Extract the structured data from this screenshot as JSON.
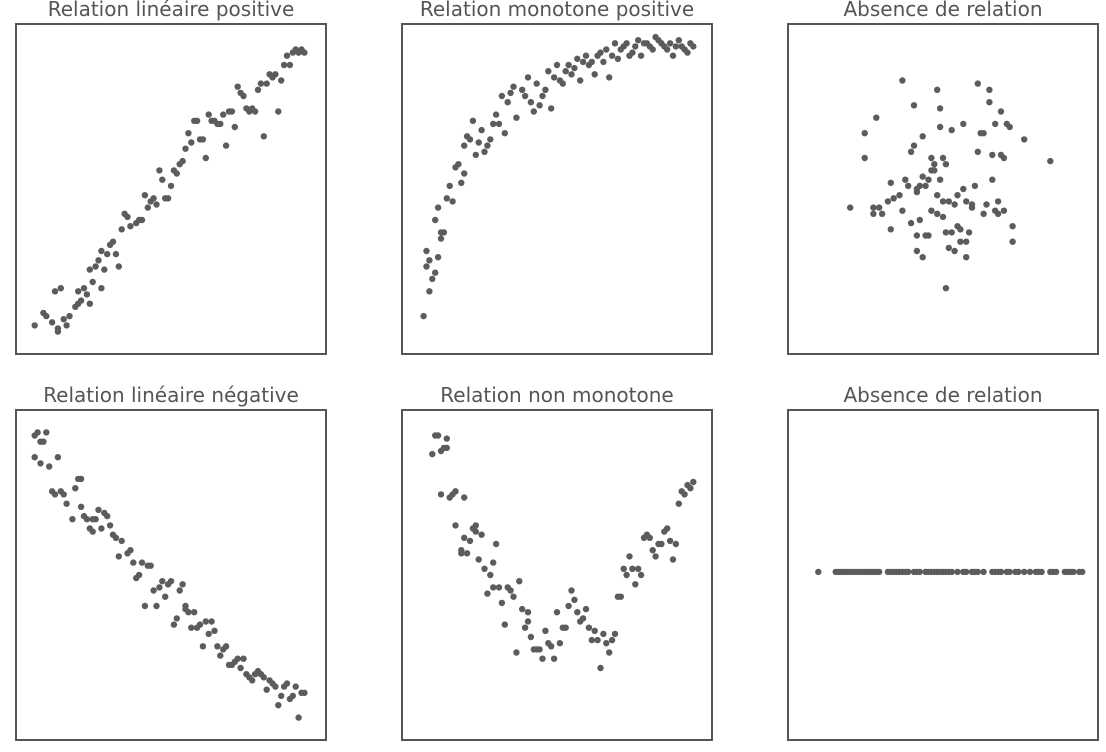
{
  "chart_data": [
    {
      "type": "scatter",
      "title": "Relation linéaire positive",
      "xlim": [
        0,
        100
      ],
      "ylim": [
        0,
        100
      ],
      "x": [
        3,
        6,
        7,
        9,
        10,
        11,
        11,
        12,
        13,
        14,
        15,
        17,
        18,
        18,
        19,
        20,
        21,
        22,
        22,
        23,
        24,
        25,
        26,
        26,
        27,
        28,
        29,
        30,
        31,
        32,
        33,
        34,
        35,
        36,
        38,
        39,
        40,
        41,
        42,
        43,
        44,
        45,
        46,
        47,
        48,
        49,
        50,
        51,
        52,
        53,
        54,
        55,
        56,
        57,
        58,
        59,
        60,
        61,
        62,
        63,
        64,
        65,
        66,
        67,
        68,
        69,
        70,
        71,
        72,
        73,
        74,
        75,
        76,
        77,
        78,
        79,
        80,
        81,
        82,
        83,
        84,
        85,
        86,
        87,
        88,
        89,
        90,
        91,
        92,
        93,
        94,
        95,
        96
      ],
      "y": [
        6,
        10,
        9,
        7,
        17,
        5,
        4,
        18,
        8,
        6,
        9,
        12,
        17,
        13,
        14,
        18,
        16,
        13,
        24,
        20,
        25,
        27,
        18,
        30,
        24,
        29,
        32,
        33,
        29,
        25,
        37,
        42,
        41,
        38,
        39,
        40,
        40,
        48,
        44,
        46,
        47,
        45,
        56,
        53,
        47,
        47,
        51,
        56,
        55,
        58,
        59,
        63,
        68,
        65,
        72,
        72,
        66,
        66,
        60,
        74,
        72,
        72,
        71,
        71,
        74,
        64,
        75,
        75,
        70,
        83,
        81,
        80,
        76,
        75,
        76,
        75,
        82,
        84,
        67,
        84,
        87,
        86,
        87,
        75,
        85,
        90,
        93,
        90,
        94,
        95,
        94,
        95,
        94
      ]
    },
    {
      "type": "scatter",
      "title": "Relation monotone positive",
      "xlim": [
        0,
        100
      ],
      "ylim": [
        0,
        100
      ],
      "x": [
        4,
        5,
        5,
        6,
        6,
        7,
        8,
        8,
        9,
        9,
        10,
        10,
        11,
        12,
        13,
        14,
        15,
        16,
        17,
        18,
        18,
        19,
        20,
        21,
        22,
        23,
        24,
        25,
        26,
        27,
        28,
        29,
        30,
        31,
        32,
        33,
        34,
        35,
        36,
        38,
        39,
        40,
        41,
        42,
        43,
        44,
        45,
        46,
        47,
        48,
        49,
        50,
        51,
        52,
        53,
        54,
        55,
        56,
        57,
        58,
        59,
        60,
        61,
        62,
        63,
        64,
        65,
        66,
        67,
        68,
        69,
        70,
        71,
        72,
        73,
        74,
        75,
        76,
        77,
        78,
        79,
        80,
        81,
        82,
        83,
        84,
        85,
        86,
        87,
        88,
        89,
        90,
        91,
        92,
        93,
        94,
        95,
        96,
        97
      ],
      "y": [
        9,
        25,
        30,
        17,
        27,
        21,
        23,
        40,
        44,
        28,
        34,
        36,
        36,
        47,
        51,
        46,
        57,
        58,
        52,
        55,
        64,
        67,
        66,
        72,
        61,
        65,
        69,
        62,
        64,
        66,
        71,
        74,
        71,
        80,
        68,
        78,
        81,
        83,
        73,
        82,
        80,
        86,
        78,
        75,
        84,
        77,
        80,
        82,
        88,
        76,
        86,
        90,
        85,
        84,
        88,
        90,
        87,
        89,
        92,
        85,
        91,
        93,
        90,
        91,
        87,
        93,
        94,
        91,
        95,
        86,
        93,
        97,
        92,
        95,
        96,
        97,
        93,
        94,
        96,
        98,
        93,
        97,
        97,
        96,
        95,
        99,
        98,
        97,
        96,
        95,
        97,
        93,
        96,
        98,
        96,
        95,
        94,
        97,
        96
      ]
    },
    {
      "type": "scatter",
      "title": "Absence de relation",
      "xlim": [
        0,
        100
      ],
      "ylim": [
        0,
        100
      ],
      "x": [
        18,
        23,
        23,
        26,
        26,
        27,
        28,
        29,
        31,
        32,
        32,
        33,
        35,
        36,
        36,
        37,
        38,
        39,
        39,
        40,
        40,
        41,
        41,
        41,
        41,
        42,
        42,
        43,
        43,
        43,
        44,
        44,
        45,
        45,
        46,
        46,
        46,
        47,
        47,
        48,
        48,
        48,
        49,
        49,
        49,
        50,
        50,
        50,
        51,
        51,
        51,
        52,
        52,
        53,
        53,
        54,
        54,
        55,
        55,
        56,
        56,
        57,
        57,
        58,
        58,
        58,
        59,
        60,
        60,
        61,
        62,
        62,
        63,
        64,
        64,
        65,
        66,
        66,
        67,
        67,
        68,
        68,
        69,
        69,
        70,
        70,
        71,
        71,
        72,
        73,
        74,
        74,
        78,
        87
      ],
      "y": [
        44,
        68,
        60,
        44,
        42,
        73,
        44,
        42,
        46,
        52,
        37,
        47,
        48,
        43,
        85,
        53,
        51,
        39,
        62,
        64,
        77,
        30,
        50,
        49,
        35,
        40,
        51,
        54,
        67,
        28,
        35,
        51,
        35,
        53,
        43,
        56,
        60,
        58,
        56,
        48,
        82,
        42,
        70,
        76,
        53,
        41,
        46,
        60,
        18,
        36,
        58,
        46,
        31,
        36,
        69,
        30,
        45,
        48,
        38,
        37,
        33,
        50,
        71,
        46,
        33,
        28,
        36,
        44,
        45,
        51,
        84,
        62,
        68,
        68,
        42,
        45,
        82,
        78,
        53,
        61,
        43,
        71,
        42,
        46,
        61,
        75,
        43,
        60,
        71,
        70,
        33,
        38,
        66,
        59
      ]
    },
    {
      "type": "scatter",
      "title": "Relation linéaire négative",
      "xlim": [
        0,
        100
      ],
      "ylim": [
        0,
        100
      ],
      "x": [
        3,
        3,
        4,
        5,
        5,
        6,
        7,
        8,
        9,
        10,
        11,
        12,
        13,
        14,
        16,
        17,
        18,
        19,
        19,
        20,
        21,
        22,
        23,
        23,
        24,
        25,
        26,
        27,
        28,
        29,
        30,
        31,
        32,
        33,
        35,
        36,
        37,
        38,
        39,
        40,
        41,
        42,
        43,
        44,
        45,
        46,
        47,
        48,
        49,
        50,
        51,
        52,
        53,
        54,
        55,
        55,
        56,
        57,
        58,
        59,
        60,
        61,
        62,
        63,
        64,
        65,
        66,
        67,
        68,
        69,
        70,
        71,
        72,
        73,
        74,
        75,
        76,
        77,
        78,
        79,
        80,
        81,
        82,
        83,
        84,
        85,
        86,
        87,
        88,
        89,
        90,
        91,
        92,
        93,
        94,
        95,
        96
      ],
      "y": [
        95,
        88,
        96,
        93,
        86,
        93,
        96,
        85,
        77,
        76,
        88,
        77,
        76,
        73,
        68,
        78,
        81,
        81,
        72,
        69,
        68,
        65,
        64,
        68,
        68,
        71,
        65,
        70,
        69,
        66,
        63,
        62,
        56,
        61,
        57,
        58,
        54,
        49,
        50,
        54,
        40,
        53,
        53,
        45,
        40,
        46,
        48,
        43,
        47,
        48,
        34,
        36,
        45,
        47,
        40,
        39,
        38,
        33,
        38,
        33,
        34,
        27,
        35,
        31,
        35,
        32,
        27,
        24,
        26,
        27,
        21,
        21,
        22,
        23,
        20,
        23,
        18,
        17,
        16,
        18,
        19,
        18,
        17,
        13,
        16,
        15,
        14,
        8,
        11,
        14,
        15,
        10,
        11,
        14,
        4,
        12,
        12
      ]
    },
    {
      "type": "scatter",
      "title": "Relation non monotone",
      "xlim": [
        0,
        100
      ],
      "ylim": [
        0,
        100
      ],
      "x": [
        7,
        8,
        9,
        10,
        10,
        11,
        12,
        12,
        13,
        14,
        15,
        15,
        17,
        17,
        18,
        18,
        19,
        20,
        21,
        22,
        22,
        23,
        24,
        25,
        26,
        27,
        28,
        28,
        29,
        30,
        31,
        32,
        33,
        34,
        35,
        36,
        37,
        38,
        39,
        40,
        40,
        41,
        42,
        43,
        44,
        45,
        46,
        47,
        48,
        49,
        50,
        51,
        52,
        53,
        54,
        55,
        56,
        57,
        58,
        59,
        60,
        61,
        62,
        63,
        64,
        65,
        66,
        67,
        68,
        69,
        70,
        71,
        72,
        73,
        74,
        75,
        76,
        77,
        78,
        79,
        80,
        81,
        82,
        83,
        84,
        85,
        86,
        87,
        88,
        89,
        90,
        91,
        92,
        93,
        94,
        95,
        96,
        97
      ],
      "y": [
        89,
        95,
        95,
        76,
        90,
        91,
        94,
        91,
        75,
        76,
        77,
        66,
        58,
        57,
        62,
        75,
        57,
        61,
        65,
        64,
        66,
        55,
        63,
        52,
        44,
        50,
        54,
        46,
        60,
        46,
        41,
        34,
        46,
        45,
        43,
        25,
        48,
        39,
        33,
        35,
        38,
        30,
        26,
        26,
        26,
        23,
        32,
        28,
        27,
        23,
        38,
        28,
        33,
        33,
        40,
        45,
        42,
        38,
        35,
        36,
        39,
        33,
        29,
        32,
        29,
        20,
        31,
        28,
        25,
        29,
        31,
        43,
        43,
        52,
        50,
        56,
        52,
        47,
        52,
        50,
        62,
        63,
        62,
        58,
        56,
        60,
        60,
        64,
        65,
        61,
        55,
        60,
        73,
        77,
        76,
        79,
        78,
        80
      ]
    },
    {
      "type": "scatter",
      "title": "Absence de relation",
      "xlim": [
        0,
        100
      ],
      "ylim": [
        0,
        100
      ],
      "x": [
        7,
        13,
        14,
        15,
        16,
        17,
        18,
        19,
        20,
        21,
        22,
        23,
        24,
        25,
        26,
        27,
        28,
        31,
        32,
        33,
        34,
        35,
        36,
        37,
        38,
        40,
        41,
        42,
        44,
        45,
        46,
        47,
        48,
        49,
        50,
        51,
        52,
        53,
        55,
        57,
        58,
        60,
        61,
        62,
        64,
        67,
        68,
        69,
        70,
        72,
        73,
        75,
        76,
        78,
        80,
        82,
        83,
        84,
        87,
        88,
        89,
        92,
        93,
        94,
        95,
        97,
        98
      ],
      "y": [
        51,
        51,
        51,
        51,
        51,
        51,
        51,
        51,
        51,
        51,
        51,
        51,
        51,
        51,
        51,
        51,
        51,
        51,
        51,
        51,
        51,
        51,
        51,
        51,
        51,
        51,
        51,
        51,
        51,
        51,
        51,
        51,
        51,
        51,
        51,
        51,
        51,
        51,
        51,
        51,
        51,
        51,
        51,
        51,
        51,
        51,
        51,
        51,
        51,
        51,
        51,
        51,
        51,
        51,
        51,
        51,
        51,
        51,
        51,
        51,
        51,
        51,
        51,
        51,
        51,
        51,
        51
      ]
    }
  ]
}
